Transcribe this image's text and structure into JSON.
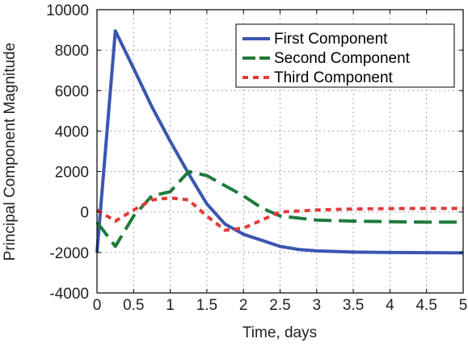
{
  "chart_data": {
    "type": "line",
    "xlabel": "Time, days",
    "ylabel": "Principal Component Magnitude",
    "xlim": [
      0,
      5
    ],
    "ylim": [
      -4000,
      10000
    ],
    "xticks": [
      0,
      0.5,
      1,
      1.5,
      2,
      2.5,
      3,
      3.5,
      4,
      4.5,
      5
    ],
    "xtick_labels": [
      "0",
      "0.5",
      "1",
      "1.5",
      "2",
      "2.5",
      "3",
      "3.5",
      "4",
      "4.5",
      "5"
    ],
    "yticks": [
      -4000,
      -2000,
      0,
      2000,
      4000,
      6000,
      8000,
      10000
    ],
    "ytick_labels": [
      "-4000",
      "-2000",
      "0",
      "2000",
      "4000",
      "6000",
      "8000",
      "10000"
    ],
    "grid": true,
    "legend_position": "top-right",
    "series": [
      {
        "name": "First Component",
        "color": "#3a56b0",
        "style": "solid",
        "x": [
          0,
          0.25,
          0.5,
          0.75,
          1.0,
          1.25,
          1.5,
          1.75,
          2.0,
          2.25,
          2.5,
          2.75,
          3.0,
          3.5,
          4.0,
          4.5,
          5.0
        ],
        "y": [
          -2000,
          8950,
          7100,
          5200,
          3500,
          1900,
          400,
          -600,
          -1100,
          -1400,
          -1700,
          -1850,
          -1920,
          -1980,
          -2000,
          -2010,
          -2020
        ]
      },
      {
        "name": "Second Component",
        "color": "#1f7a3a",
        "style": "dashed",
        "x": [
          0,
          0.25,
          0.5,
          0.75,
          1.0,
          1.25,
          1.5,
          1.75,
          2.0,
          2.25,
          2.5,
          2.75,
          3.0,
          3.5,
          4.0,
          4.5,
          5.0
        ],
        "y": [
          -500,
          -1700,
          -200,
          800,
          1000,
          2000,
          1800,
          1300,
          800,
          200,
          -200,
          -300,
          -400,
          -450,
          -480,
          -500,
          -500
        ]
      },
      {
        "name": "Third Component",
        "color": "#e03a3a",
        "style": "dotted",
        "x": [
          0,
          0.25,
          0.5,
          0.75,
          1.0,
          1.25,
          1.5,
          1.75,
          2.0,
          2.25,
          2.5,
          2.75,
          3.0,
          3.5,
          4.0,
          4.5,
          5.0
        ],
        "y": [
          100,
          -450,
          100,
          600,
          700,
          600,
          -200,
          -900,
          -800,
          -400,
          0,
          50,
          100,
          150,
          170,
          180,
          180
        ]
      }
    ]
  }
}
